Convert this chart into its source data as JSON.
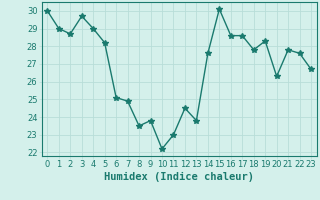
{
  "x": [
    0,
    1,
    2,
    3,
    4,
    5,
    6,
    7,
    8,
    9,
    10,
    11,
    12,
    13,
    14,
    15,
    16,
    17,
    18,
    19,
    20,
    21,
    22,
    23
  ],
  "y": [
    30.0,
    29.0,
    28.7,
    29.7,
    29.0,
    28.2,
    25.1,
    24.9,
    23.5,
    23.8,
    22.2,
    23.0,
    24.5,
    23.8,
    27.6,
    30.1,
    28.6,
    28.6,
    27.8,
    28.3,
    26.3,
    27.8,
    27.6,
    26.7
  ],
  "line_color": "#1a7a6e",
  "marker": "*",
  "marker_size": 4,
  "bg_color": "#d4f0eb",
  "grid_color": "#b8ddd8",
  "xlabel": "Humidex (Indice chaleur)",
  "xlim": [
    -0.5,
    23.5
  ],
  "ylim": [
    21.8,
    30.5
  ],
  "yticks": [
    22,
    23,
    24,
    25,
    26,
    27,
    28,
    29,
    30
  ],
  "xticks": [
    0,
    1,
    2,
    3,
    4,
    5,
    6,
    7,
    8,
    9,
    10,
    11,
    12,
    13,
    14,
    15,
    16,
    17,
    18,
    19,
    20,
    21,
    22,
    23
  ],
  "tick_fontsize": 6,
  "xlabel_fontsize": 7.5,
  "line_width": 1.0
}
